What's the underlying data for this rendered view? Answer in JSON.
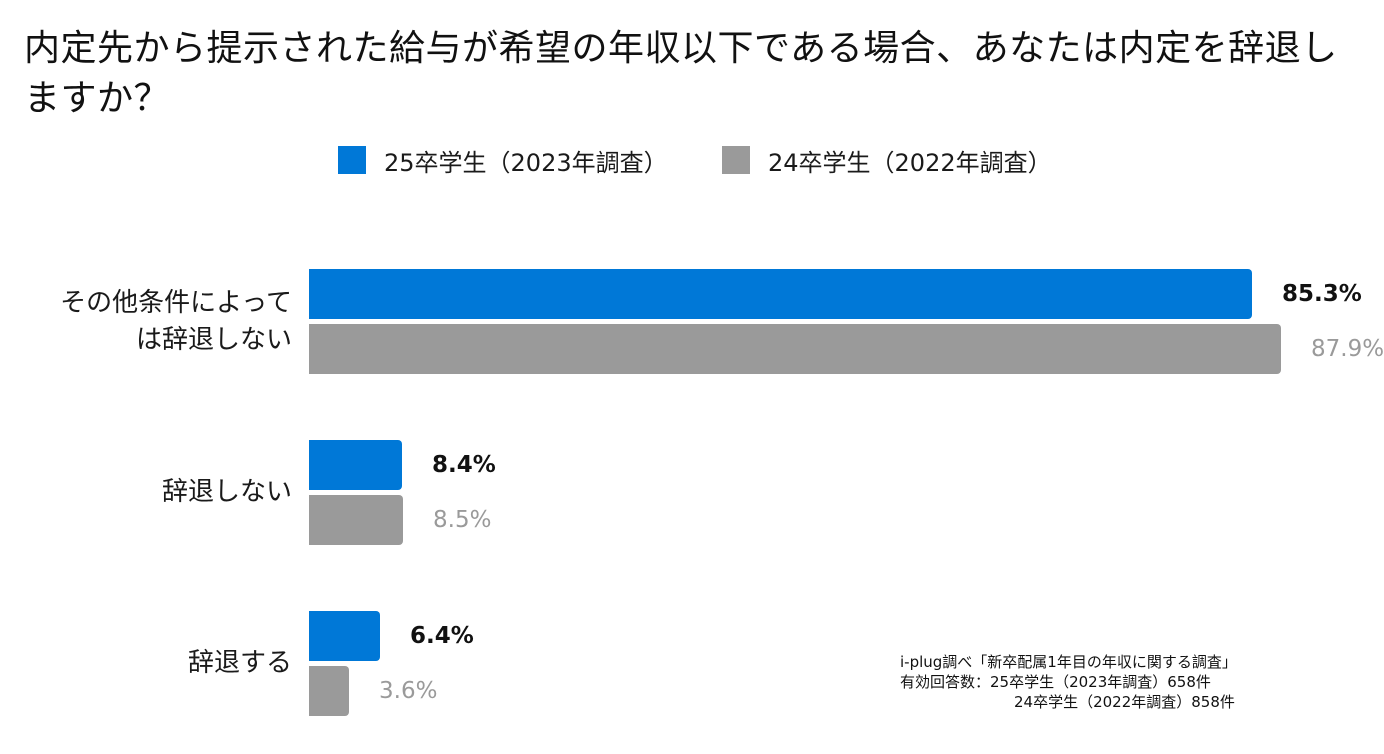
{
  "title_line1": "内定先から提示された給与が希望の年収以下である場合、あなたは内定を辞退し",
  "title_line2": "ますか？",
  "colors": {
    "series1": "#0078d7",
    "series2": "#9a9a9a"
  },
  "chart_data": {
    "type": "bar",
    "orientation": "horizontal",
    "title": "内定先から提示された給与が希望の年収以下である場合、あなたは内定を辞退しますか？",
    "categories": [
      [
        "その他条件によって",
        "は辞退しない"
      ],
      [
        "辞退しない"
      ],
      [
        "辞退する"
      ]
    ],
    "series": [
      {
        "name": "25卒学生（2023年調査）",
        "values": [
          85.3,
          8.4,
          6.4
        ],
        "labels": [
          "85.3%",
          "8.4%",
          "6.4%"
        ],
        "color": "#0078d7"
      },
      {
        "name": "24卒学生（2022年調査）",
        "values": [
          87.9,
          8.5,
          3.6
        ],
        "labels": [
          "87.9%",
          "8.5%",
          "3.6%"
        ],
        "color": "#9a9a9a"
      }
    ],
    "xlim": [
      0,
      100
    ],
    "grid": false,
    "legend_position": "top-center"
  },
  "note": {
    "line1": "i-plug調べ「新卒配属1年目の年収に関する調査」",
    "line2": "有効回答数：25卒学生（2023年調査）658件",
    "line3": "24卒学生（2022年調査）858件"
  }
}
